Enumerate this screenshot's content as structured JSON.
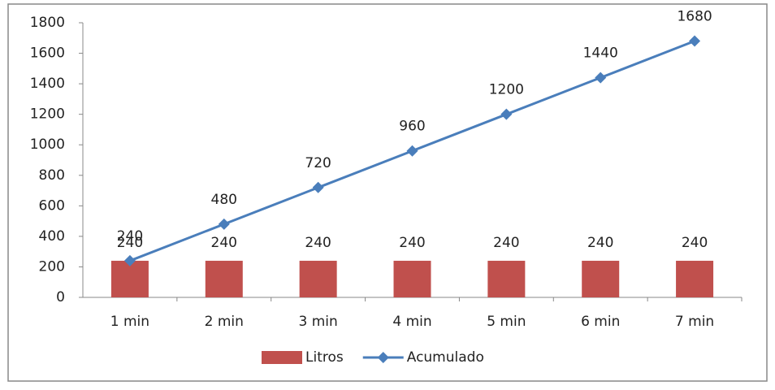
{
  "chart_data": {
    "type": "bar",
    "categories": [
      "1 min",
      "2 min",
      "3 min",
      "4 min",
      "5 min",
      "6 min",
      "7 min"
    ],
    "series": [
      {
        "name": "Litros",
        "type": "bar",
        "color": "#c0504d",
        "values": [
          240,
          240,
          240,
          240,
          240,
          240,
          240
        ]
      },
      {
        "name": "Acumulado",
        "type": "line",
        "color": "#4a7ebb",
        "values": [
          240,
          480,
          720,
          960,
          1200,
          1440,
          1680
        ]
      }
    ],
    "ylim": [
      0,
      1800
    ],
    "yticks": [
      0,
      200,
      400,
      600,
      800,
      1000,
      1200,
      1400,
      1600,
      1800
    ],
    "grid": false,
    "data_labels": true,
    "legend": "bottom"
  }
}
